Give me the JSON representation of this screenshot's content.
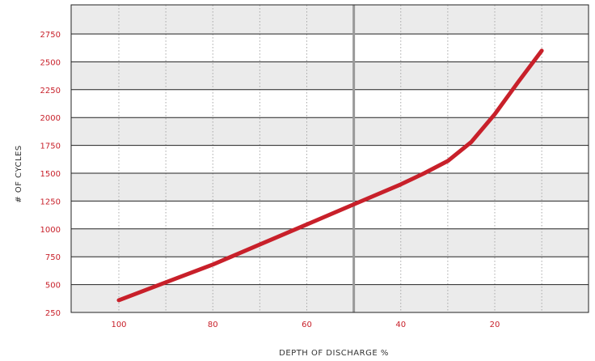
{
  "chart_data": {
    "type": "line",
    "title": "",
    "xlabel": "DEPTH OF DISCHARGE %",
    "ylabel": "# OF CYCLES",
    "x_reversed": true,
    "xlim": [
      110,
      0
    ],
    "ylim": [
      250,
      3000
    ],
    "x_ticks": [
      100,
      80,
      60,
      40,
      20
    ],
    "y_ticks": [
      250,
      500,
      750,
      1000,
      1250,
      1500,
      1750,
      2000,
      2250,
      2500,
      2750
    ],
    "x_minor_gridlines": [
      100,
      90,
      80,
      70,
      60,
      40,
      30,
      20,
      10
    ],
    "highlight_line_x": 50,
    "grid": true,
    "band_colors": [
      "#ebebeb",
      "#ffffff"
    ],
    "colors": {
      "series": "#c8202a",
      "tick_labels": "#c8202a",
      "highlight_line": "#999999"
    },
    "series": [
      {
        "x": [
          100,
          90,
          80,
          70,
          60,
          50,
          40,
          35,
          30,
          25,
          20,
          15,
          10
        ],
        "y": [
          360,
          520,
          680,
          860,
          1040,
          1220,
          1400,
          1500,
          1610,
          1780,
          2030,
          2320,
          2600
        ]
      }
    ]
  }
}
